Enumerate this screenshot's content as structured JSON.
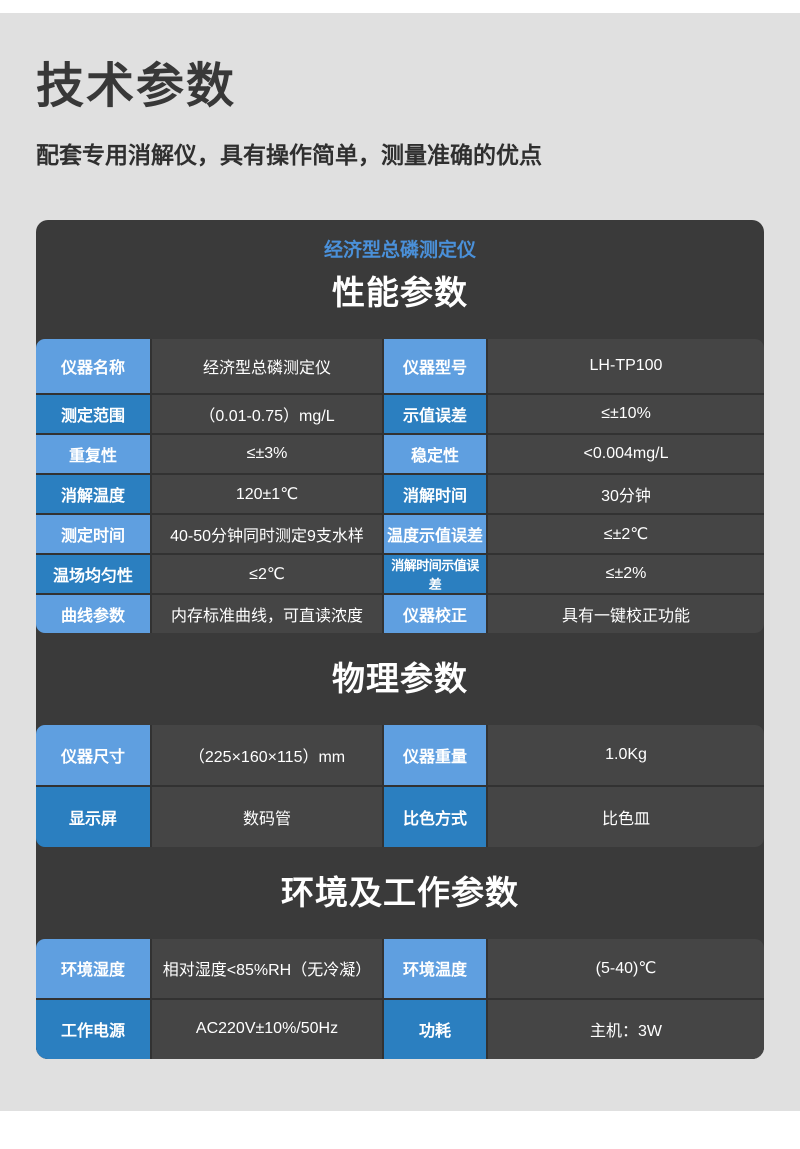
{
  "page": {
    "title": "技术参数",
    "subtitle": "配套专用消解仪，具有操作简单，测量准确的优点"
  },
  "card": {
    "product_title": "经济型总磷测定仪",
    "sections": [
      {
        "heading": "性能参数",
        "rows": [
          [
            "仪器名称",
            "经济型总磷测定仪",
            "仪器型号",
            "LH-TP100"
          ],
          [
            "测定范围",
            "（0.01-0.75）mg/L",
            "示值误差",
            "≤±10%"
          ],
          [
            "重复性",
            "≤±3%",
            "稳定性",
            "<0.004mg/L"
          ],
          [
            "消解温度",
            "120±1℃",
            "消解时间",
            "30分钟"
          ],
          [
            "测定时间",
            "40-50分钟同时测定9支水样",
            "温度示值误差",
            "≤±2℃"
          ],
          [
            "温场均匀性",
            "≤2℃",
            "消解时间示值误差",
            "≤±2%"
          ],
          [
            "曲线参数",
            "内存标准曲线，可直读浓度",
            "仪器校正",
            "具有一键校正功能"
          ]
        ]
      },
      {
        "heading": "物理参数",
        "rows": [
          [
            "仪器尺寸",
            "（225×160×115）mm",
            "仪器重量",
            "1.0Kg"
          ],
          [
            "显示屏",
            "数码管",
            "比色方式",
            "比色皿"
          ]
        ]
      },
      {
        "heading": "环境及工作参数",
        "rows": [
          [
            "环境湿度",
            "相对湿度<85%RH（无冷凝）",
            "环境温度",
            "(5-40)℃"
          ],
          [
            "工作电源",
            "AC220V±10%/50Hz",
            "功耗",
            "主机：3W"
          ]
        ]
      }
    ]
  },
  "colors": {
    "panel_bg": "#e0e0e0",
    "card_bg": "#3a3a3a",
    "cell_bg": "#454545",
    "label_light_blue": "#5f9fe0",
    "label_dark_blue": "#2b7fc0",
    "accent_blue_text": "#4a90d9"
  }
}
